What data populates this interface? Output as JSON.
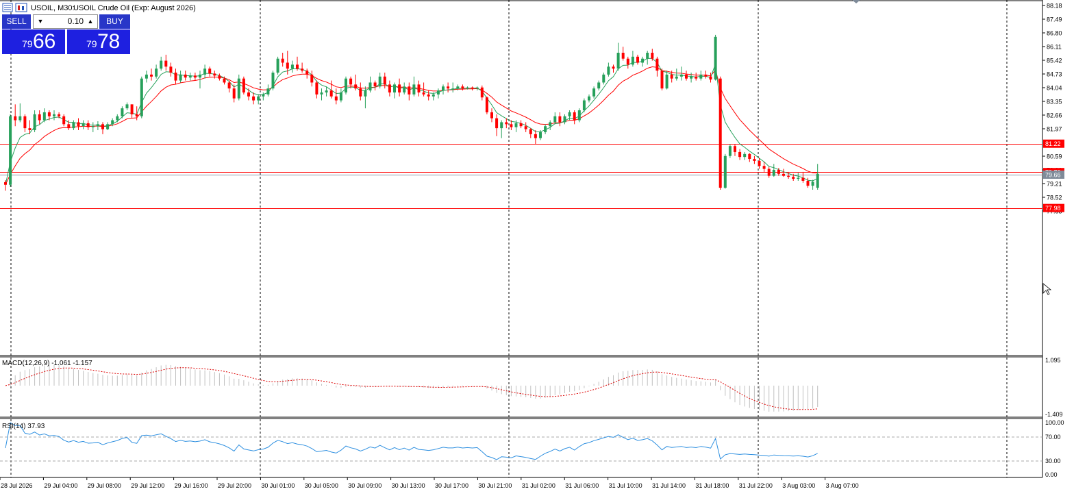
{
  "header": {
    "symbol": "USOIL, M30:",
    "description": "USOIL Crude Oil (Exp: August 2026)"
  },
  "trade_panel": {
    "sell_label": "SELL",
    "buy_label": "BUY",
    "volume": "0.10",
    "sell_price_prefix": "79",
    "sell_price_big": "66",
    "buy_price_prefix": "79",
    "buy_price_big": "78"
  },
  "price_axis": {
    "ticks": [
      "88.18",
      "87.49",
      "86.80",
      "86.11",
      "85.42",
      "84.73",
      "84.04",
      "83.35",
      "82.66",
      "81.97",
      "80.59",
      "79.90",
      "79.21",
      "78.52",
      "77.83"
    ],
    "badges": [
      {
        "label": "81.22",
        "value": 81.22,
        "color": "#ff0000"
      },
      {
        "label": "79.79",
        "value": 79.79,
        "color": "#ff0000"
      },
      {
        "label": "79.66",
        "value": 79.66,
        "color": "#7f8b99"
      },
      {
        "label": "77.98",
        "value": 77.98,
        "color": "#ff0000"
      }
    ]
  },
  "horizontal_lines": [
    {
      "value": 81.22,
      "color": "#ff0000"
    },
    {
      "value": 79.79,
      "color": "#ff0000"
    },
    {
      "value": 79.66,
      "color": "#8a96a8"
    },
    {
      "value": 77.98,
      "color": "#ff0000"
    }
  ],
  "time_axis": {
    "labels": [
      "28 Jul 2026",
      "29 Jul 04:00",
      "29 Jul 08:00",
      "29 Jul 12:00",
      "29 Jul 16:00",
      "29 Jul 20:00",
      "30 Jul 01:00",
      "30 Jul 05:00",
      "30 Jul 09:00",
      "30 Jul 13:00",
      "30 Jul 17:00",
      "30 Jul 21:00",
      "31 Jul 02:00",
      "31 Jul 06:00",
      "31 Jul 10:00",
      "31 Jul 14:00",
      "31 Jul 18:00",
      "31 Jul 22:00",
      "3 Aug 03:00",
      "3 Aug 07:00"
    ]
  },
  "macd": {
    "label": "MACD(12,26,9) -1.061 -1.157",
    "ticks": [
      "1.095",
      "-1.409"
    ]
  },
  "rsi": {
    "label": "RSI(14) 37.93",
    "ticks": [
      "100.00",
      "70.00",
      "30.00",
      "0.00"
    ]
  },
  "colors": {
    "bull": "#26a05a",
    "bear": "#ff0000",
    "ma_fast": "#26a05a",
    "ma_slow": "#ff0000",
    "rsi_line": "#2d8fe0",
    "macd_signal": "#dd0000",
    "macd_hist": "#c0c0c0"
  },
  "chart_data": {
    "type": "candlestick",
    "timeframe": "M30",
    "ylim": [
      77.5,
      88.4
    ],
    "candles": [
      [
        79.28,
        79.38,
        78.85,
        79.15
      ],
      [
        79.15,
        82.7,
        79.05,
        82.6
      ],
      [
        82.6,
        83.2,
        82.1,
        82.4
      ],
      [
        82.4,
        83.25,
        82.3,
        82.6
      ],
      [
        82.6,
        82.7,
        81.8,
        82.0
      ],
      [
        82.0,
        82.4,
        81.7,
        81.9
      ],
      [
        81.9,
        82.9,
        81.8,
        82.7
      ],
      [
        82.7,
        82.9,
        82.2,
        82.4
      ],
      [
        82.4,
        83.0,
        82.3,
        82.8
      ],
      [
        82.8,
        82.9,
        82.4,
        82.6
      ],
      [
        82.6,
        82.9,
        82.4,
        82.7
      ],
      [
        82.7,
        82.8,
        82.5,
        82.6
      ],
      [
        82.6,
        82.7,
        82.1,
        82.2
      ],
      [
        82.2,
        82.4,
        81.9,
        82.0
      ],
      [
        82.0,
        82.4,
        81.9,
        82.3
      ],
      [
        82.3,
        82.5,
        81.9,
        82.1
      ],
      [
        82.1,
        82.4,
        81.95,
        82.25
      ],
      [
        82.25,
        82.4,
        81.9,
        82.05
      ],
      [
        82.05,
        82.3,
        81.8,
        82.1
      ],
      [
        82.1,
        82.35,
        81.9,
        82.2
      ],
      [
        82.2,
        82.3,
        81.7,
        81.95
      ],
      [
        81.95,
        82.3,
        81.9,
        82.2
      ],
      [
        82.2,
        82.5,
        82.1,
        82.4
      ],
      [
        82.4,
        82.7,
        82.3,
        82.6
      ],
      [
        82.6,
        83.1,
        82.5,
        83.0
      ],
      [
        83.0,
        83.3,
        82.9,
        83.2
      ],
      [
        83.2,
        83.2,
        82.5,
        82.7
      ],
      [
        82.7,
        83.1,
        82.4,
        82.6
      ],
      [
        82.6,
        84.6,
        82.5,
        84.5
      ],
      [
        84.5,
        84.9,
        84.3,
        84.7
      ],
      [
        84.7,
        85.0,
        84.4,
        84.6
      ],
      [
        84.6,
        85.2,
        84.5,
        85.0
      ],
      [
        85.0,
        85.6,
        84.9,
        85.4
      ],
      [
        85.4,
        85.7,
        84.9,
        85.1
      ],
      [
        85.1,
        85.3,
        84.6,
        84.8
      ],
      [
        84.8,
        85.0,
        84.2,
        84.4
      ],
      [
        84.4,
        84.9,
        84.3,
        84.7
      ],
      [
        84.7,
        84.9,
        84.4,
        84.55
      ],
      [
        84.55,
        84.8,
        84.4,
        84.65
      ],
      [
        84.65,
        84.8,
        84.4,
        84.55
      ],
      [
        84.55,
        84.9,
        84.0,
        84.7
      ],
      [
        84.7,
        85.2,
        84.5,
        85.0
      ],
      [
        85.0,
        85.1,
        84.6,
        84.75
      ],
      [
        84.75,
        84.9,
        84.5,
        84.65
      ],
      [
        84.65,
        84.75,
        84.4,
        84.5
      ],
      [
        84.5,
        84.6,
        84.2,
        84.3
      ],
      [
        84.3,
        84.4,
        83.8,
        84.0
      ],
      [
        84.0,
        84.2,
        83.3,
        83.5
      ],
      [
        83.5,
        84.7,
        83.4,
        84.5
      ],
      [
        84.5,
        84.6,
        83.7,
        83.8
      ],
      [
        83.8,
        84.0,
        83.4,
        83.6
      ],
      [
        83.6,
        83.8,
        83.2,
        83.4
      ],
      [
        83.4,
        83.7,
        83.2,
        83.6
      ],
      [
        83.6,
        83.8,
        83.4,
        83.7
      ],
      [
        83.7,
        84.2,
        83.6,
        84.0
      ],
      [
        84.0,
        84.9,
        83.9,
        84.8
      ],
      [
        84.8,
        85.6,
        84.7,
        85.5
      ],
      [
        85.5,
        85.8,
        85.1,
        85.3
      ],
      [
        85.3,
        85.9,
        84.7,
        85.0
      ],
      [
        85.0,
        85.4,
        84.8,
        85.2
      ],
      [
        85.2,
        85.6,
        84.9,
        85.0
      ],
      [
        85.0,
        85.3,
        84.8,
        84.9
      ],
      [
        84.9,
        85.0,
        84.5,
        84.7
      ],
      [
        84.7,
        84.9,
        84.1,
        84.3
      ],
      [
        84.3,
        84.4,
        83.5,
        83.7
      ],
      [
        83.7,
        84.0,
        83.4,
        83.8
      ],
      [
        83.8,
        84.1,
        83.6,
        83.9
      ],
      [
        83.9,
        84.4,
        83.5,
        83.6
      ],
      [
        83.6,
        84.0,
        83.2,
        83.4
      ],
      [
        83.4,
        84.0,
        83.3,
        83.8
      ],
      [
        83.8,
        84.6,
        83.7,
        84.5
      ],
      [
        84.5,
        84.6,
        84.0,
        84.2
      ],
      [
        84.2,
        84.7,
        83.9,
        84.0
      ],
      [
        84.0,
        84.3,
        83.4,
        83.6
      ],
      [
        83.6,
        84.1,
        83.0,
        83.9
      ],
      [
        83.9,
        84.6,
        83.8,
        84.3
      ],
      [
        84.3,
        84.4,
        83.9,
        84.1
      ],
      [
        84.1,
        84.8,
        84.0,
        84.6
      ],
      [
        84.6,
        84.8,
        84.0,
        84.2
      ],
      [
        84.2,
        84.4,
        83.6,
        83.8
      ],
      [
        83.8,
        84.3,
        83.5,
        84.2
      ],
      [
        84.2,
        84.5,
        83.6,
        83.8
      ],
      [
        83.8,
        84.3,
        83.7,
        84.1
      ],
      [
        84.1,
        84.3,
        83.4,
        83.7
      ],
      [
        83.7,
        84.6,
        83.6,
        84.2
      ],
      [
        84.2,
        84.4,
        83.6,
        83.8
      ],
      [
        83.8,
        84.3,
        83.6,
        83.7
      ],
      [
        83.7,
        83.9,
        83.4,
        83.6
      ],
      [
        83.6,
        83.8,
        83.4,
        83.7
      ],
      [
        83.7,
        84.0,
        83.5,
        83.9
      ],
      [
        83.9,
        84.2,
        83.7,
        84.1
      ],
      [
        84.1,
        84.3,
        83.8,
        84.0
      ],
      [
        84.0,
        84.3,
        83.8,
        84.0
      ],
      [
        84.0,
        84.2,
        83.9,
        84.1
      ],
      [
        84.1,
        84.2,
        83.9,
        84.0
      ],
      [
        84.0,
        84.1,
        83.95,
        84.05
      ],
      [
        84.05,
        84.1,
        83.9,
        84.0
      ],
      [
        84.0,
        84.1,
        83.9,
        84.05
      ],
      [
        84.05,
        84.15,
        83.4,
        83.55
      ],
      [
        83.55,
        83.6,
        82.7,
        82.8
      ],
      [
        82.8,
        83.0,
        82.3,
        82.5
      ],
      [
        82.5,
        82.7,
        81.6,
        82.0
      ],
      [
        82.0,
        82.4,
        81.5,
        82.3
      ],
      [
        82.3,
        82.5,
        82.0,
        82.2
      ],
      [
        82.2,
        82.4,
        81.9,
        82.05
      ],
      [
        82.05,
        82.4,
        81.8,
        82.25
      ],
      [
        82.25,
        82.4,
        82.0,
        82.1
      ],
      [
        82.1,
        82.3,
        81.8,
        81.95
      ],
      [
        81.95,
        82.0,
        81.5,
        81.7
      ],
      [
        81.7,
        81.9,
        81.2,
        81.5
      ],
      [
        81.5,
        81.9,
        81.4,
        81.8
      ],
      [
        81.8,
        82.2,
        81.7,
        82.1
      ],
      [
        82.1,
        82.4,
        81.9,
        82.3
      ],
      [
        82.3,
        82.8,
        82.2,
        82.6
      ],
      [
        82.6,
        82.8,
        82.1,
        82.3
      ],
      [
        82.3,
        82.7,
        82.2,
        82.6
      ],
      [
        82.6,
        82.9,
        82.4,
        82.8
      ],
      [
        82.8,
        82.9,
        82.2,
        82.4
      ],
      [
        82.4,
        83.0,
        82.3,
        82.9
      ],
      [
        82.9,
        83.5,
        82.8,
        83.4
      ],
      [
        83.4,
        83.7,
        83.3,
        83.6
      ],
      [
        83.6,
        84.1,
        83.5,
        84.0
      ],
      [
        84.0,
        84.4,
        83.9,
        84.3
      ],
      [
        84.3,
        84.8,
        84.2,
        84.7
      ],
      [
        84.7,
        85.3,
        84.6,
        85.1
      ],
      [
        85.1,
        85.2,
        84.8,
        85.0
      ],
      [
        85.0,
        86.3,
        84.9,
        85.8
      ],
      [
        85.8,
        86.1,
        85.4,
        85.5
      ],
      [
        85.5,
        85.6,
        85.0,
        85.2
      ],
      [
        85.2,
        85.9,
        85.1,
        85.6
      ],
      [
        85.6,
        85.7,
        85.2,
        85.3
      ],
      [
        85.3,
        85.6,
        85.1,
        85.5
      ],
      [
        85.5,
        85.9,
        85.2,
        85.8
      ],
      [
        85.8,
        86.0,
        85.4,
        85.5
      ],
      [
        85.5,
        85.6,
        84.6,
        84.9
      ],
      [
        84.9,
        85.0,
        83.9,
        84.0
      ],
      [
        84.0,
        84.9,
        83.95,
        84.7
      ],
      [
        84.7,
        84.9,
        84.3,
        84.5
      ],
      [
        84.5,
        85.0,
        84.4,
        84.6
      ],
      [
        84.6,
        85.1,
        84.4,
        84.7
      ],
      [
        84.7,
        84.9,
        84.4,
        84.5
      ],
      [
        84.5,
        84.8,
        84.3,
        84.6
      ],
      [
        84.6,
        84.8,
        84.4,
        84.5
      ],
      [
        84.5,
        84.9,
        84.4,
        84.7
      ],
      [
        84.7,
        84.9,
        84.5,
        84.6
      ],
      [
        84.6,
        84.8,
        84.3,
        84.45
      ],
      [
        84.45,
        86.7,
        84.4,
        86.6
      ],
      [
        84.5,
        84.6,
        78.9,
        79.0
      ],
      [
        79.0,
        80.7,
        78.95,
        80.6
      ],
      [
        80.6,
        81.2,
        80.5,
        81.1
      ],
      [
        81.1,
        81.2,
        80.6,
        80.8
      ],
      [
        80.8,
        80.95,
        80.4,
        80.55
      ],
      [
        80.55,
        80.8,
        80.4,
        80.7
      ],
      [
        80.7,
        80.75,
        80.3,
        80.45
      ],
      [
        80.45,
        80.6,
        80.2,
        80.35
      ],
      [
        80.35,
        80.5,
        79.95,
        80.1
      ],
      [
        80.1,
        80.3,
        79.8,
        79.95
      ],
      [
        79.95,
        80.05,
        79.5,
        79.6
      ],
      [
        79.6,
        80.2,
        79.55,
        79.9
      ],
      [
        79.9,
        80.0,
        79.6,
        79.7
      ],
      [
        79.7,
        79.95,
        79.55,
        79.6
      ],
      [
        79.6,
        79.8,
        79.45,
        79.55
      ],
      [
        79.55,
        79.7,
        79.35,
        79.45
      ],
      [
        79.45,
        79.75,
        79.35,
        79.5
      ],
      [
        79.5,
        79.8,
        79.25,
        79.35
      ],
      [
        79.35,
        79.5,
        79.0,
        79.1
      ],
      [
        79.1,
        79.4,
        78.9,
        79.3
      ],
      [
        79.0,
        80.2,
        78.9,
        79.7
      ]
    ]
  }
}
